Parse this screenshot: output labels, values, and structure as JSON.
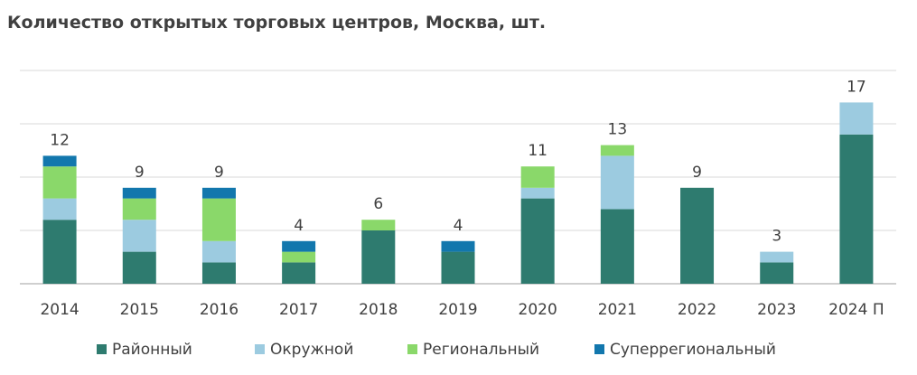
{
  "chart_data": {
    "type": "bar",
    "stacked": true,
    "title": "Количество открытых торговых центров, Москва, шт.",
    "xlabel": "",
    "ylabel": "",
    "ylim": [
      0,
      20
    ],
    "grid": true,
    "legend_position": "bottom",
    "categories": [
      "2014",
      "2015",
      "2016",
      "2017",
      "2018",
      "2019",
      "2020",
      "2021",
      "2022",
      "2023",
      "2024 П"
    ],
    "totals": [
      "12",
      "9",
      "9",
      "4",
      "6",
      "4",
      "11",
      "13",
      "9",
      "3",
      "17"
    ],
    "series": [
      {
        "name": "Районный",
        "color": "#2e7b6f",
        "values": [
          6,
          3,
          2,
          2,
          5,
          3,
          8,
          7,
          9,
          2,
          14
        ]
      },
      {
        "name": "Окружной",
        "color": "#9ccbe0",
        "values": [
          2,
          3,
          2,
          0,
          0,
          0,
          1,
          5,
          0,
          1,
          3
        ]
      },
      {
        "name": "Региональный",
        "color": "#8ad86a",
        "values": [
          3,
          2,
          4,
          1,
          1,
          0,
          2,
          1,
          0,
          0,
          0
        ]
      },
      {
        "name": "Суперрегиональный",
        "color": "#1277ad",
        "values": [
          1,
          1,
          1,
          1,
          0,
          1,
          0,
          0,
          0,
          0,
          0
        ]
      }
    ]
  }
}
